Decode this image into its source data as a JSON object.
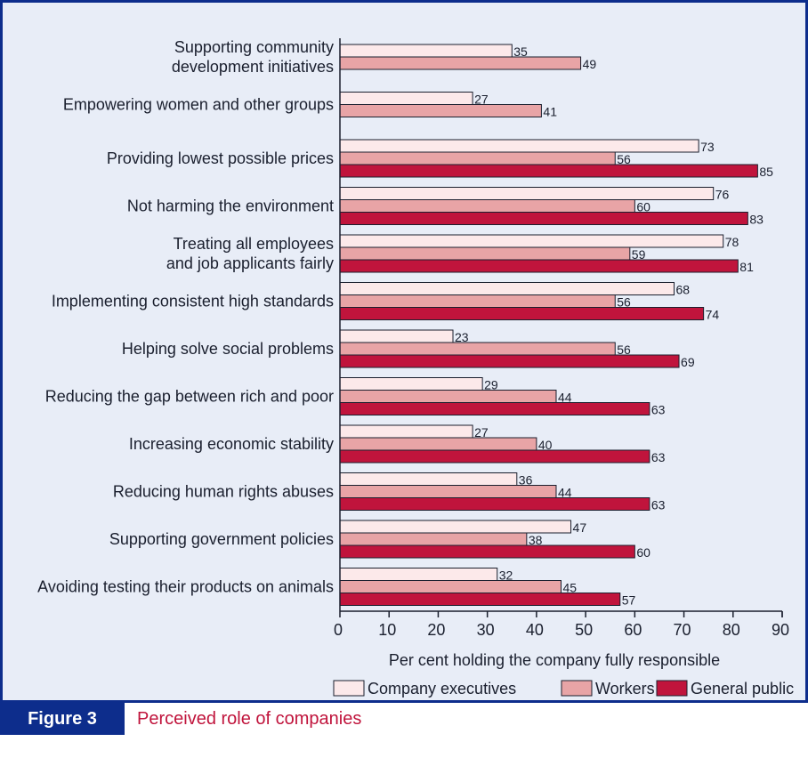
{
  "figure": {
    "number_label": "Figure 3",
    "caption": "Perceived role of companies"
  },
  "colors": {
    "panel_background": "#e8edf7",
    "frame": "#0d2d8c",
    "caption_text": "#c0143c"
  },
  "chart_data": {
    "type": "bar",
    "orientation": "horizontal",
    "title": "",
    "xlabel": "Per cent holding the company fully responsible",
    "ylabel": "",
    "xlim": [
      0,
      90
    ],
    "xticks": [
      "0",
      "10",
      "20",
      "30",
      "40",
      "50",
      "60",
      "70",
      "80",
      "90"
    ],
    "grid": false,
    "legend_position": "bottom",
    "categories": [
      [
        "Supporting community",
        "development initiatives"
      ],
      [
        "Empowering women and other groups"
      ],
      [
        "Providing lowest possible prices"
      ],
      [
        "Not harming the environment"
      ],
      [
        "Treating all employees",
        "and job applicants fairly"
      ],
      [
        "Implementing consistent high standards"
      ],
      [
        "Helping solve social problems"
      ],
      [
        "Reducing the gap between rich and poor"
      ],
      [
        "Increasing economic stability"
      ],
      [
        "Reducing human rights abuses"
      ],
      [
        "Supporting government policies"
      ],
      [
        "Avoiding testing their products on animals"
      ]
    ],
    "series": [
      {
        "name": "Company executives",
        "color": "#fce9ea",
        "values": [
          35,
          27,
          73,
          76,
          78,
          68,
          23,
          29,
          27,
          36,
          47,
          32
        ]
      },
      {
        "name": "Workers",
        "color": "#e8a4a6",
        "values": [
          49,
          41,
          56,
          60,
          59,
          56,
          56,
          44,
          40,
          44,
          38,
          45
        ]
      },
      {
        "name": "General public",
        "color": "#c0143c",
        "values": [
          null,
          null,
          85,
          83,
          81,
          74,
          69,
          63,
          63,
          63,
          60,
          57
        ]
      }
    ]
  }
}
